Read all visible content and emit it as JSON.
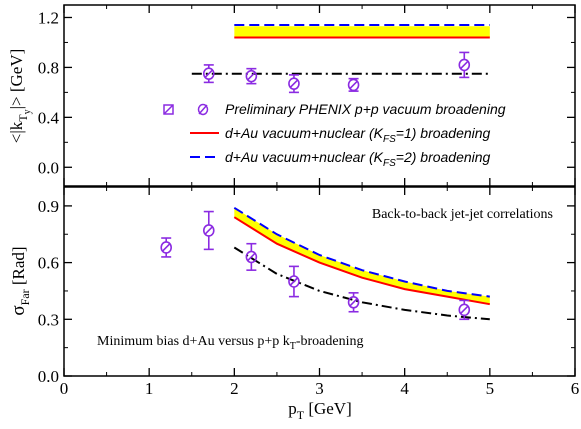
{
  "chart_data": [
    {
      "type": "line",
      "panel": "top",
      "ylabel_parts": {
        "pre": "<|k",
        "sub1": "T",
        "sub2": "y",
        "post": "|> [GeV]"
      },
      "ylim": [
        -0.15,
        1.3
      ],
      "yticks": [
        0.0,
        0.4,
        0.8,
        1.2
      ],
      "ytick_labels": [
        "0.0",
        "0.4",
        "0.8",
        "1.2"
      ],
      "band": {
        "x": [
          2,
          5
        ],
        "lower": 1.04,
        "upper": 1.13,
        "color": "#ffff00"
      },
      "series": [
        {
          "key": "kfs1",
          "style": "solid",
          "color": "#ff0000",
          "x": [
            2,
            5
          ],
          "y": [
            1.04,
            1.04
          ]
        },
        {
          "key": "kfs2",
          "style": "dashed",
          "color": "#0000ff",
          "x": [
            2,
            5
          ],
          "y": [
            1.14,
            1.14
          ]
        },
        {
          "key": "vac",
          "style": "dashdot",
          "color": "#000000",
          "x": [
            1.5,
            5
          ],
          "y": [
            0.75,
            0.75
          ]
        }
      ],
      "points": {
        "color": "#8b2be2",
        "x": [
          1.7,
          2.2,
          2.7,
          3.4,
          4.7
        ],
        "y": [
          0.75,
          0.73,
          0.67,
          0.66,
          0.82
        ],
        "err": [
          0.07,
          0.06,
          0.07,
          0.05,
          0.1
        ]
      },
      "legend": {
        "placement": "center-right",
        "entries": [
          {
            "key": "data",
            "text": "Preliminary PHENIX p+p vacuum broadening"
          },
          {
            "key": "kfs1",
            "text_pre": "d+Au vacuum+nuclear (K",
            "text_sub": "FS",
            "text_post": "=1) broadening"
          },
          {
            "key": "kfs2",
            "text_pre": "d+Au vacuum+nuclear (K",
            "text_sub": "FS",
            "text_post": "=2) broadening"
          }
        ]
      }
    },
    {
      "type": "line",
      "panel": "bottom",
      "ylabel_parts": {
        "pre": "σ",
        "sub": "Far",
        "post": " [Rad]"
      },
      "xlabel_parts": {
        "pre": "p",
        "sub": "T",
        "post": " [GeV]"
      },
      "xlim": [
        0,
        6
      ],
      "xticks": [
        0,
        1,
        2,
        3,
        4,
        5,
        6
      ],
      "xtick_labels": [
        "0",
        "1",
        "2",
        "3",
        "4",
        "5",
        "6"
      ],
      "ylim": [
        0.0,
        1.0
      ],
      "yticks": [
        0.0,
        0.3,
        0.6,
        0.9
      ],
      "ytick_labels": [
        "0.0",
        "0.3",
        "0.6",
        "0.9"
      ],
      "annotations": {
        "top_right": "Back-to-back jet-jet correlations",
        "bottom_left_pre": "Minimum bias d+Au versus p+p k",
        "bottom_left_sub": "T",
        "bottom_left_post": "-broadening"
      },
      "band": {
        "color": "#ffff00"
      },
      "series": [
        {
          "key": "kfs1",
          "style": "solid",
          "color": "#ff0000",
          "x": [
            2,
            2.5,
            3,
            3.5,
            4,
            4.5,
            5
          ],
          "y": [
            0.84,
            0.7,
            0.6,
            0.52,
            0.46,
            0.42,
            0.38
          ]
        },
        {
          "key": "kfs2",
          "style": "dashed",
          "color": "#0000ff",
          "x": [
            2,
            2.5,
            3,
            3.5,
            4,
            4.5,
            5
          ],
          "y": [
            0.89,
            0.75,
            0.64,
            0.56,
            0.5,
            0.45,
            0.42
          ]
        },
        {
          "key": "vac",
          "style": "dashdot",
          "color": "#000000",
          "x": [
            2,
            2.5,
            3,
            3.5,
            4,
            4.5,
            5
          ],
          "y": [
            0.68,
            0.54,
            0.45,
            0.39,
            0.35,
            0.32,
            0.3
          ]
        }
      ],
      "points": {
        "color": "#8b2be2",
        "x": [
          1.2,
          1.7,
          2.2,
          2.7,
          3.4,
          4.7
        ],
        "y": [
          0.68,
          0.77,
          0.63,
          0.5,
          0.39,
          0.35
        ],
        "err": [
          0.05,
          0.1,
          0.07,
          0.08,
          0.05,
          0.05
        ]
      }
    }
  ]
}
